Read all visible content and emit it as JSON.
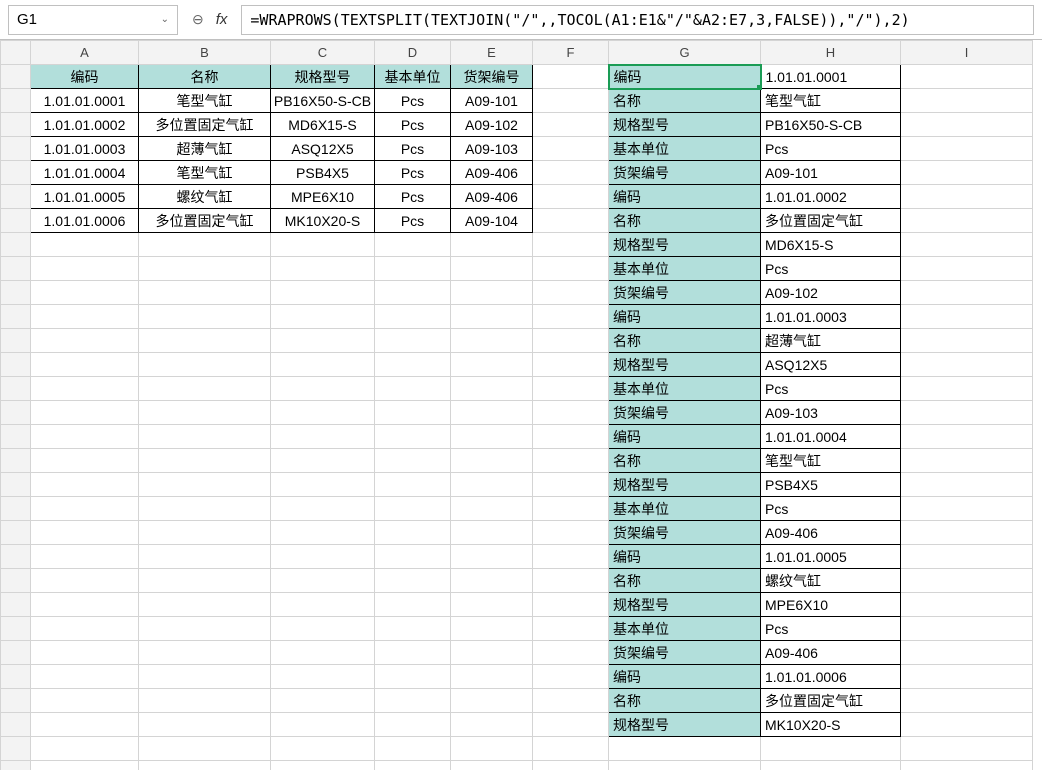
{
  "nameBox": {
    "value": "G1"
  },
  "formula": "=WRAPROWS(TEXTSPLIT(TEXTJOIN(\"/\",,TOCOL(A1:E1&\"/\"&A2:E7,3,FALSE)),\"/\"),2)",
  "colHeaders": [
    "A",
    "B",
    "C",
    "D",
    "E",
    "F",
    "G",
    "H",
    "I"
  ],
  "colWidths": {
    "A": 108,
    "B": 132,
    "C": 104,
    "D": 76,
    "E": 82,
    "F": 76,
    "G": 152,
    "H": 140,
    "I": 132
  },
  "colors": {
    "tealFill": "#b2dfdb",
    "gridBorder": "#d4d4d4",
    "dataBorder": "#000000",
    "selectBorder": "#1a9c55",
    "headerBg": "#f3f3f3"
  },
  "leftTable": {
    "header": [
      "编码",
      "名称",
      "规格型号",
      "基本单位",
      "货架编号"
    ],
    "rows": [
      [
        "1.01.01.0001",
        "笔型气缸",
        "PB16X50-S-CB",
        "Pcs",
        "A09-101"
      ],
      [
        "1.01.01.0002",
        "多位置固定气缸",
        "MD6X15-S",
        "Pcs",
        "A09-102"
      ],
      [
        "1.01.01.0003",
        "超薄气缸",
        "ASQ12X5",
        "Pcs",
        "A09-103"
      ],
      [
        "1.01.01.0004",
        "笔型气缸",
        "PSB4X5",
        "Pcs",
        "A09-406"
      ],
      [
        "1.01.01.0005",
        "螺纹气缸",
        "MPE6X10",
        "Pcs",
        "A09-406"
      ],
      [
        "1.01.01.0006",
        "多位置固定气缸",
        "MK10X20-S",
        "Pcs",
        "A09-104"
      ]
    ]
  },
  "rightTable": {
    "pairs": [
      [
        "编码",
        "1.01.01.0001"
      ],
      [
        "名称",
        "笔型气缸"
      ],
      [
        "规格型号",
        "PB16X50-S-CB"
      ],
      [
        "基本单位",
        "Pcs"
      ],
      [
        "货架编号",
        "A09-101"
      ],
      [
        "编码",
        "1.01.01.0002"
      ],
      [
        "名称",
        "多位置固定气缸"
      ],
      [
        "规格型号",
        "MD6X15-S"
      ],
      [
        "基本单位",
        "Pcs"
      ],
      [
        "货架编号",
        "A09-102"
      ],
      [
        "编码",
        "1.01.01.0003"
      ],
      [
        "名称",
        "超薄气缸"
      ],
      [
        "规格型号",
        "ASQ12X5"
      ],
      [
        "基本单位",
        "Pcs"
      ],
      [
        "货架编号",
        "A09-103"
      ],
      [
        "编码",
        "1.01.01.0004"
      ],
      [
        "名称",
        "笔型气缸"
      ],
      [
        "规格型号",
        "PSB4X5"
      ],
      [
        "基本单位",
        "Pcs"
      ],
      [
        "货架编号",
        "A09-406"
      ],
      [
        "编码",
        "1.01.01.0005"
      ],
      [
        "名称",
        "螺纹气缸"
      ],
      [
        "规格型号",
        "MPE6X10"
      ],
      [
        "基本单位",
        "Pcs"
      ],
      [
        "货架编号",
        "A09-406"
      ],
      [
        "编码",
        "1.01.01.0006"
      ],
      [
        "名称",
        "多位置固定气缸"
      ],
      [
        "规格型号",
        "MK10X20-S"
      ]
    ]
  },
  "icons": {
    "zoomOut": "⊖",
    "fx": "fx",
    "chevron": "⌄"
  }
}
